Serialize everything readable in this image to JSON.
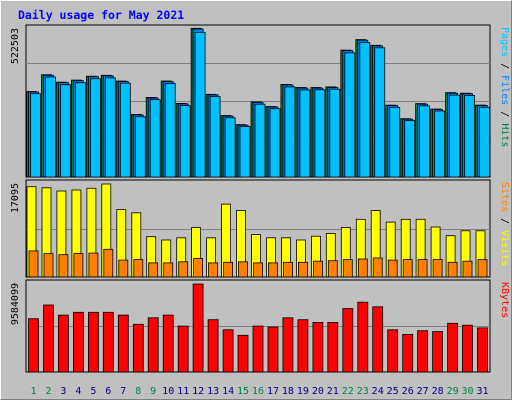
{
  "chart_data": [
    {
      "type": "bar",
      "panel": "hits",
      "title": "Daily usage for May 2021",
      "ymax_label": "522503",
      "ylim": [
        0,
        522503
      ],
      "categories": [
        "1",
        "2",
        "3",
        "4",
        "5",
        "6",
        "7",
        "8",
        "9",
        "10",
        "11",
        "12",
        "13",
        "14",
        "15",
        "16",
        "17",
        "18",
        "19",
        "20",
        "21",
        "22",
        "23",
        "24",
        "25",
        "26",
        "27",
        "28",
        "29",
        "30",
        "31"
      ],
      "legend": [
        "Pages",
        "Files",
        "Hits"
      ],
      "series": [
        {
          "name": "Hits",
          "color": "#008040",
          "values": [
            302000,
            361000,
            335000,
            342000,
            356000,
            359000,
            339000,
            221000,
            281000,
            339000,
            260000,
            525000,
            292000,
            217000,
            185000,
            265000,
            249000,
            327000,
            316000,
            316000,
            318000,
            448000,
            485000,
            465000,
            254000,
            206000,
            259000,
            240000,
            298000,
            296000,
            254000
          ]
        },
        {
          "name": "Files",
          "color": "#0080ff",
          "values": [
            300000,
            359000,
            333000,
            340000,
            354000,
            357000,
            337000,
            219000,
            279000,
            337000,
            258000,
            522503,
            290000,
            215000,
            183000,
            263000,
            247000,
            325000,
            314000,
            314000,
            316000,
            446000,
            483000,
            463000,
            252000,
            204000,
            257000,
            238000,
            296000,
            294000,
            252000
          ]
        },
        {
          "name": "Pages",
          "color": "#00c0ff",
          "values": [
            294000,
            353000,
            326000,
            333000,
            347000,
            350000,
            331000,
            213000,
            273000,
            330000,
            252000,
            511000,
            284000,
            209000,
            178000,
            257000,
            241000,
            318000,
            307000,
            308000,
            310000,
            438000,
            475000,
            456000,
            246000,
            199000,
            251000,
            233000,
            289000,
            288000,
            246000
          ]
        }
      ]
    },
    {
      "type": "bar",
      "panel": "visits",
      "ymax_label": "17095",
      "ylim": [
        0,
        17095
      ],
      "categories": [
        "1",
        "2",
        "3",
        "4",
        "5",
        "6",
        "7",
        "8",
        "9",
        "10",
        "11",
        "12",
        "13",
        "14",
        "15",
        "16",
        "17",
        "18",
        "19",
        "20",
        "21",
        "22",
        "23",
        "24",
        "25",
        "26",
        "27",
        "28",
        "29",
        "30",
        "31"
      ],
      "legend": [
        "Sites",
        "Visits"
      ],
      "series": [
        {
          "name": "Visits",
          "color": "#ffff00",
          "values": [
            16600,
            16400,
            15800,
            16000,
            16300,
            17095,
            12400,
            11800,
            7400,
            6800,
            7200,
            9100,
            7200,
            13400,
            12200,
            7800,
            7200,
            7200,
            6800,
            7500,
            8000,
            9100,
            10600,
            12200,
            10100,
            10600,
            10600,
            9200,
            7600,
            8500,
            8500
          ]
        },
        {
          "name": "Sites",
          "color": "#ff8000",
          "values": [
            4800,
            4300,
            4100,
            4300,
            4400,
            5100,
            3100,
            3200,
            2600,
            2600,
            2800,
            3400,
            2600,
            2700,
            2800,
            2600,
            2600,
            2700,
            2700,
            2900,
            3000,
            3200,
            3300,
            3500,
            3100,
            3200,
            3200,
            3200,
            2700,
            2900,
            3200
          ]
        }
      ]
    },
    {
      "type": "bar",
      "panel": "kbytes",
      "ymax_label": "9584099",
      "ylim": [
        0,
        9584099
      ],
      "categories": [
        "1",
        "2",
        "3",
        "4",
        "5",
        "6",
        "7",
        "8",
        "9",
        "10",
        "11",
        "12",
        "13",
        "14",
        "15",
        "16",
        "17",
        "18",
        "19",
        "20",
        "21",
        "22",
        "23",
        "24",
        "25",
        "26",
        "27",
        "28",
        "29",
        "30",
        "31"
      ],
      "legend": [
        "KBytes"
      ],
      "series": [
        {
          "name": "KBytes",
          "color": "#ff0000",
          "values": [
            5800000,
            7300000,
            6200000,
            6500000,
            6500000,
            6500000,
            6200000,
            5200000,
            5900000,
            6200000,
            5000000,
            9584099,
            5700000,
            4600000,
            4000000,
            5000000,
            4900000,
            5900000,
            5700000,
            5400000,
            5400000,
            6900000,
            7600000,
            7100000,
            4600000,
            4100000,
            4500000,
            4400000,
            5300000,
            5100000,
            4800000
          ]
        }
      ]
    }
  ],
  "style": {
    "background": "#c0c0c0",
    "plot_background": "#ffffff",
    "title_color": "#0000ff",
    "weekend_label_color": "#008040",
    "weekday_label_color": "#000080",
    "weekend_days": [
      "1",
      "2",
      "8",
      "9",
      "15",
      "16",
      "22",
      "23",
      "29",
      "30"
    ]
  }
}
